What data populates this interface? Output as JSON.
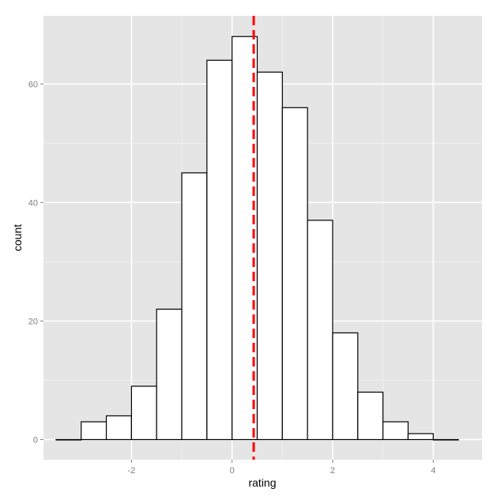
{
  "chart_data": {
    "type": "bar",
    "xlabel": "rating",
    "ylabel": "count",
    "xlim": [
      -3.75,
      4.97
    ],
    "ylim": [
      -3.4,
      71.5
    ],
    "x_ticks": [
      -2,
      0,
      2,
      4
    ],
    "y_ticks": [
      0,
      20,
      40,
      60
    ],
    "x_tick_labels": [
      "-2",
      "0",
      "2",
      "4"
    ],
    "y_tick_labels": [
      "0",
      "20",
      "40",
      "60"
    ],
    "bin_width": 0.5,
    "bins": [
      {
        "x0": -3.5,
        "x1": -3.0,
        "count": 0
      },
      {
        "x0": -3.0,
        "x1": -2.5,
        "count": 3
      },
      {
        "x0": -2.5,
        "x1": -2.0,
        "count": 4
      },
      {
        "x0": -2.0,
        "x1": -1.5,
        "count": 9
      },
      {
        "x0": -1.5,
        "x1": -1.0,
        "count": 22
      },
      {
        "x0": -1.0,
        "x1": -0.5,
        "count": 45
      },
      {
        "x0": -0.5,
        "x1": 0.0,
        "count": 64
      },
      {
        "x0": 0.0,
        "x1": 0.5,
        "count": 68
      },
      {
        "x0": 0.5,
        "x1": 1.0,
        "count": 62
      },
      {
        "x0": 1.0,
        "x1": 1.5,
        "count": 56
      },
      {
        "x0": 1.5,
        "x1": 2.0,
        "count": 37
      },
      {
        "x0": 2.0,
        "x1": 2.5,
        "count": 18
      },
      {
        "x0": 2.5,
        "x1": 3.0,
        "count": 8
      },
      {
        "x0": 3.0,
        "x1": 3.5,
        "count": 3
      },
      {
        "x0": 3.5,
        "x1": 4.0,
        "count": 1
      },
      {
        "x0": 4.0,
        "x1": 4.5,
        "count": 0
      }
    ],
    "vline": {
      "x": 0.43,
      "color": "#ff0000",
      "style": "dashed"
    },
    "colors": {
      "panel_background": "#e5e5e5",
      "grid_major": "#ffffff",
      "grid_minor": "#f2f2f2",
      "bar_fill": "#ffffff",
      "bar_stroke": "#000000",
      "tick_text": "#7f7f7f"
    },
    "grid": true,
    "legend": "none"
  }
}
